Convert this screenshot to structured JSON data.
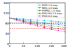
{
  "chart_data": {
    "type": "line",
    "x": [
      0,
      25,
      50,
      75,
      100,
      125,
      150,
      175,
      200
    ],
    "series": [
      {
        "name": "PMO-1.0 step",
        "color": "#00bcd4",
        "marker": "square",
        "line_style": "dashed",
        "values": [
          100,
          98,
          96,
          94,
          92,
          90,
          88,
          86,
          84
        ]
      },
      {
        "name": "NMC-1.0 step",
        "color": "#1f4fd6",
        "marker": "circle",
        "line_style": "dashed",
        "values": [
          100,
          96,
          92,
          88,
          84,
          80,
          77,
          74,
          71
        ]
      },
      {
        "name": "FMPRO-1.0 step",
        "color": "#2ca02c",
        "marker": "triangle",
        "line_style": "dashed",
        "values": [
          100,
          95,
          89,
          84,
          79,
          74,
          70,
          66,
          62
        ]
      },
      {
        "name": "PMO-MV-1.5 step",
        "color": "#e02020",
        "marker": "circle",
        "line_style": "dashed",
        "values": [
          100,
          94,
          87,
          80,
          74,
          68,
          63,
          58,
          54
        ]
      },
      {
        "name": "PMO-0.8 step",
        "color": "#c020c0",
        "marker": "square",
        "line_style": "dashed",
        "values": [
          100,
          92,
          84,
          76,
          69,
          62,
          56,
          51,
          46
        ]
      }
    ],
    "reference_lines": [
      {
        "value": 80,
        "color": "#000000"
      },
      {
        "value": 60,
        "color": "#e02020"
      }
    ],
    "xlim": [
      0,
      200
    ],
    "xticks": [
      0,
      50,
      100,
      150,
      200
    ],
    "ylim": [
      0,
      160
    ],
    "yticks": [
      0,
      40,
      80,
      120,
      160
    ],
    "legend": "top-right",
    "grid": false
  }
}
